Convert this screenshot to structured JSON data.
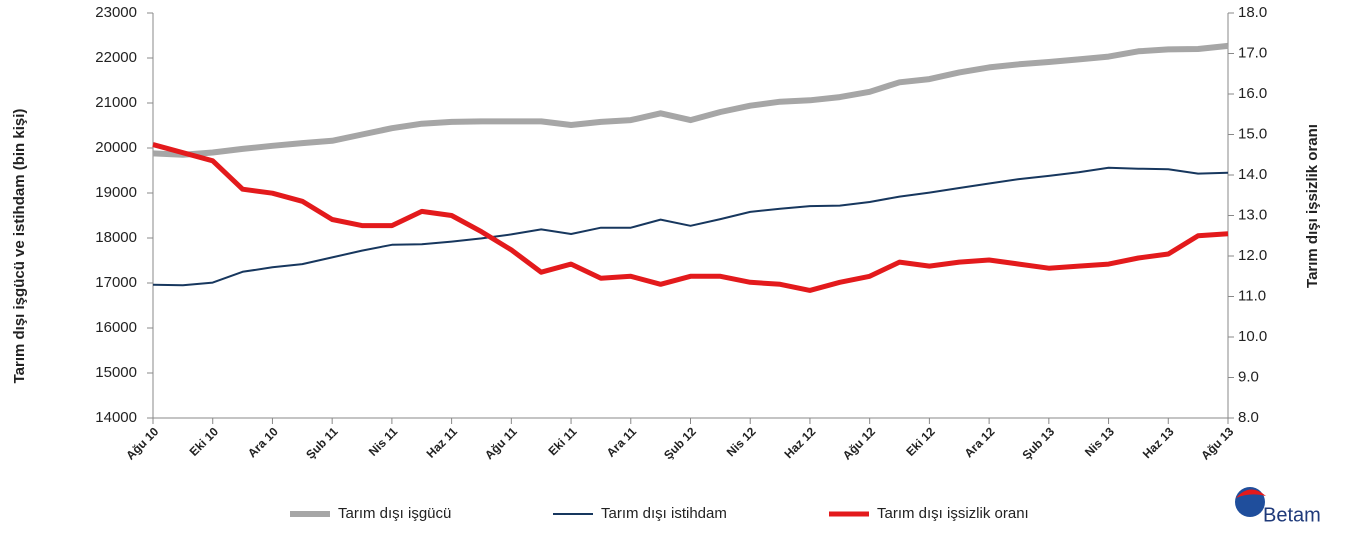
{
  "chart_data": {
    "type": "line",
    "categories": [
      "Ağu 10",
      null,
      "Eki 10",
      null,
      "Ara 10",
      null,
      "Şub 11",
      null,
      "Nis 11",
      null,
      "Haz 11",
      null,
      "Ağu 11",
      null,
      "Eki 11",
      null,
      "Ara 11",
      null,
      "Şub 12",
      null,
      "Nis 12",
      null,
      "Haz 12",
      null,
      "Ağu 12",
      null,
      "Eki 12",
      null,
      "Ara 12",
      null,
      "Şub 13",
      null,
      "Nis 13",
      null,
      "Haz 13",
      null,
      "Ağu 13"
    ],
    "series": [
      {
        "name": "Tarım dışı işgücü",
        "color": "#a6a6a6",
        "width": 6,
        "values": [
          19880,
          19850,
          19900,
          19980,
          20050,
          20110,
          20160,
          20300,
          20440,
          20540,
          20580,
          20590,
          20590,
          20590,
          20510,
          20580,
          20620,
          20770,
          20620,
          20800,
          20940,
          21030,
          21060,
          21130,
          21250,
          21460,
          21530,
          21680,
          21790,
          21860,
          21910,
          21970,
          22030,
          22150,
          22190,
          22200,
          22270
        ]
      },
      {
        "name": "Tarım dışı istihdam",
        "color": "#17375e",
        "width": 2,
        "values": [
          16960,
          16950,
          17010,
          17250,
          17350,
          17420,
          17570,
          17720,
          17850,
          17860,
          17920,
          17990,
          18080,
          18190,
          18090,
          18230,
          18230,
          18410,
          18270,
          18420,
          18580,
          18650,
          18710,
          18720,
          18800,
          18920,
          19010,
          19110,
          19210,
          19310,
          19380,
          19460,
          19560,
          19540,
          19530,
          19430,
          19450
        ]
      },
      {
        "name": "Tarım dışı işsizlik oranı",
        "color": "#e31a1c",
        "width": 5,
        "axis": "y2",
        "values": [
          14.75,
          14.55,
          14.35,
          13.65,
          13.55,
          13.35,
          12.9,
          12.75,
          12.75,
          13.1,
          13.0,
          12.6,
          12.15,
          11.6,
          11.8,
          11.45,
          11.5,
          11.3,
          11.5,
          11.5,
          11.35,
          11.3,
          11.15,
          11.35,
          11.5,
          11.85,
          11.75,
          11.85,
          11.9,
          11.8,
          11.7,
          11.75,
          11.8,
          11.95,
          12.05,
          12.5,
          12.55
        ]
      }
    ],
    "ylabel": "Tarım dışı işgücü ve istihdam (bin kişi)",
    "y2label": "Tarım dışı işsizlik oranı",
    "ylim": [
      14000,
      23000
    ],
    "yticks": [
      14000,
      15000,
      16000,
      17000,
      18000,
      19000,
      20000,
      21000,
      22000,
      23000
    ],
    "y2lim": [
      8,
      18
    ],
    "y2ticks": [
      {
        "value": 8,
        "label": "8.0"
      },
      {
        "value": 9,
        "label": "9.0"
      },
      {
        "value": 10,
        "label": "10.0"
      },
      {
        "value": 11,
        "label": "11.0"
      },
      {
        "value": 12,
        "label": "12.0"
      },
      {
        "value": 13,
        "label": "13.0"
      },
      {
        "value": 14,
        "label": "14.0"
      },
      {
        "value": 15,
        "label": "15.0"
      },
      {
        "value": 16,
        "label": "16.0"
      },
      {
        "value": 17,
        "label": "17.0"
      },
      {
        "value": 18,
        "label": "18.0"
      }
    ],
    "legend": "bottom",
    "logo": "Betam"
  }
}
